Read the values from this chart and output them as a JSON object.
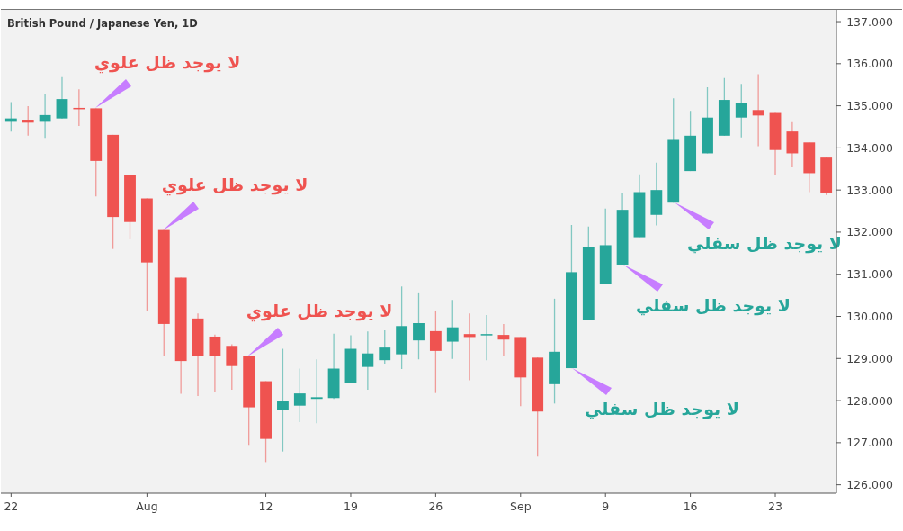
{
  "chart_data": {
    "type": "candlestick",
    "title": "British Pound / Japanese Yen, 1D",
    "categories": [
      "22",
      null,
      null,
      null,
      null,
      null,
      null,
      null,
      "Aug",
      null,
      null,
      null,
      null,
      null,
      null,
      "12",
      null,
      null,
      null,
      null,
      "19",
      null,
      null,
      null,
      null,
      "26",
      null,
      null,
      null,
      null,
      "Sep",
      null,
      null,
      null,
      null,
      "9",
      null,
      null,
      null,
      null,
      "16",
      null,
      null,
      null,
      null,
      "23",
      null,
      null,
      null
    ],
    "ohlc": [
      [
        134.62,
        135.09,
        134.39,
        134.7
      ],
      [
        134.67,
        134.99,
        134.29,
        134.6
      ],
      [
        134.62,
        135.27,
        134.24,
        134.78
      ],
      [
        134.7,
        135.68,
        134.7,
        135.16
      ],
      [
        134.95,
        135.39,
        134.52,
        134.93
      ],
      [
        134.94,
        134.94,
        132.85,
        133.69
      ],
      [
        134.31,
        134.31,
        131.6,
        132.36
      ],
      [
        133.35,
        133.35,
        131.83,
        132.24
      ],
      [
        132.8,
        132.8,
        130.14,
        131.28
      ],
      [
        132.05,
        132.05,
        129.07,
        129.82
      ],
      [
        130.92,
        130.92,
        128.16,
        128.94
      ],
      [
        129.95,
        130.07,
        128.11,
        129.07
      ],
      [
        129.52,
        129.57,
        128.21,
        129.07
      ],
      [
        129.3,
        129.34,
        128.26,
        128.82
      ],
      [
        129.05,
        129.05,
        126.95,
        127.84
      ],
      [
        128.46,
        128.46,
        126.54,
        127.09
      ],
      [
        127.77,
        129.23,
        126.79,
        127.98
      ],
      [
        127.88,
        128.76,
        127.49,
        128.17
      ],
      [
        128.04,
        128.98,
        127.46,
        128.08
      ],
      [
        128.06,
        129.59,
        128.04,
        128.76
      ],
      [
        128.41,
        129.55,
        128.41,
        129.23
      ],
      [
        128.8,
        129.64,
        128.26,
        129.12
      ],
      [
        128.96,
        129.67,
        128.88,
        129.26
      ],
      [
        129.1,
        130.71,
        128.75,
        129.77
      ],
      [
        129.43,
        130.57,
        128.98,
        129.84
      ],
      [
        129.65,
        130.14,
        128.18,
        129.18
      ],
      [
        129.4,
        130.39,
        128.99,
        129.74
      ],
      [
        129.58,
        130.07,
        128.48,
        129.51
      ],
      [
        129.55,
        130.03,
        128.96,
        129.58
      ],
      [
        129.56,
        129.82,
        129.07,
        129.45
      ],
      [
        129.51,
        129.51,
        127.87,
        128.55
      ],
      [
        129.02,
        129.02,
        126.67,
        127.74
      ],
      [
        128.39,
        130.42,
        127.93,
        129.16
      ],
      [
        128.77,
        132.17,
        128.77,
        131.05
      ],
      [
        129.91,
        132.13,
        129.91,
        131.64
      ],
      [
        130.76,
        132.56,
        130.76,
        131.69
      ],
      [
        131.23,
        132.92,
        131.23,
        132.53
      ],
      [
        131.88,
        133.37,
        131.88,
        132.95
      ],
      [
        132.41,
        133.65,
        132.16,
        133.0
      ],
      [
        132.7,
        135.18,
        132.7,
        134.19
      ],
      [
        133.45,
        134.88,
        133.45,
        134.29
      ],
      [
        133.87,
        135.44,
        133.87,
        134.72
      ],
      [
        134.29,
        135.66,
        134.29,
        135.14
      ],
      [
        134.72,
        135.52,
        134.25,
        135.06
      ],
      [
        134.9,
        135.75,
        134.04,
        134.77
      ],
      [
        134.83,
        134.83,
        133.35,
        133.95
      ],
      [
        134.39,
        134.61,
        133.54,
        133.87
      ],
      [
        134.13,
        134.13,
        132.95,
        133.4
      ],
      [
        133.77,
        133.77,
        132.88,
        132.94
      ]
    ],
    "colors": [
      "#26a69a",
      "#ef5350",
      "#26a69a",
      "#26a69a",
      "#ef5350",
      "#ef5350",
      "#ef5350",
      "#ef5350",
      "#ef5350",
      "#ef5350",
      "#ef5350",
      "#ef5350",
      "#ef5350",
      "#ef5350",
      "#ef5350",
      "#ef5350",
      "#26a69a",
      "#26a69a",
      "#26a69a",
      "#26a69a",
      "#26a69a",
      "#26a69a",
      "#26a69a",
      "#26a69a",
      "#26a69a",
      "#ef5350",
      "#26a69a",
      "#ef5350",
      "#26a69a",
      "#ef5350",
      "#ef5350",
      "#ef5350",
      "#26a69a",
      "#26a69a",
      "#26a69a",
      "#26a69a",
      "#26a69a",
      "#26a69a",
      "#26a69a",
      "#26a69a",
      "#26a69a",
      "#26a69a",
      "#26a69a",
      "#26a69a",
      "#ef5350",
      "#ef5350",
      "#ef5350",
      "#ef5350",
      "#ef5350"
    ],
    "ylim": [
      125.8,
      137.3
    ],
    "yticks": [
      {
        "value": 126,
        "label": "126.000"
      },
      {
        "value": 127,
        "label": "127.000"
      },
      {
        "value": 128,
        "label": "128.000"
      },
      {
        "value": 129,
        "label": "129.000"
      },
      {
        "value": 130,
        "label": "130.000"
      },
      {
        "value": 131,
        "label": "131.000"
      },
      {
        "value": 132,
        "label": "132.000"
      },
      {
        "value": 133,
        "label": "133.000"
      },
      {
        "value": 134,
        "label": "134.000"
      },
      {
        "value": 135,
        "label": "135.000"
      },
      {
        "value": 136,
        "label": "136.000"
      },
      {
        "value": 137,
        "label": "137.000"
      }
    ],
    "annotations": [
      "لا يوجد ظل علوي",
      "لا يوجد ظل علوي",
      "لا يوجد ظل علوي",
      "لا يوجد ظل سفلي",
      "لا يوجد ظل سفلي",
      "لا يوجد ظل سفلي"
    ]
  }
}
